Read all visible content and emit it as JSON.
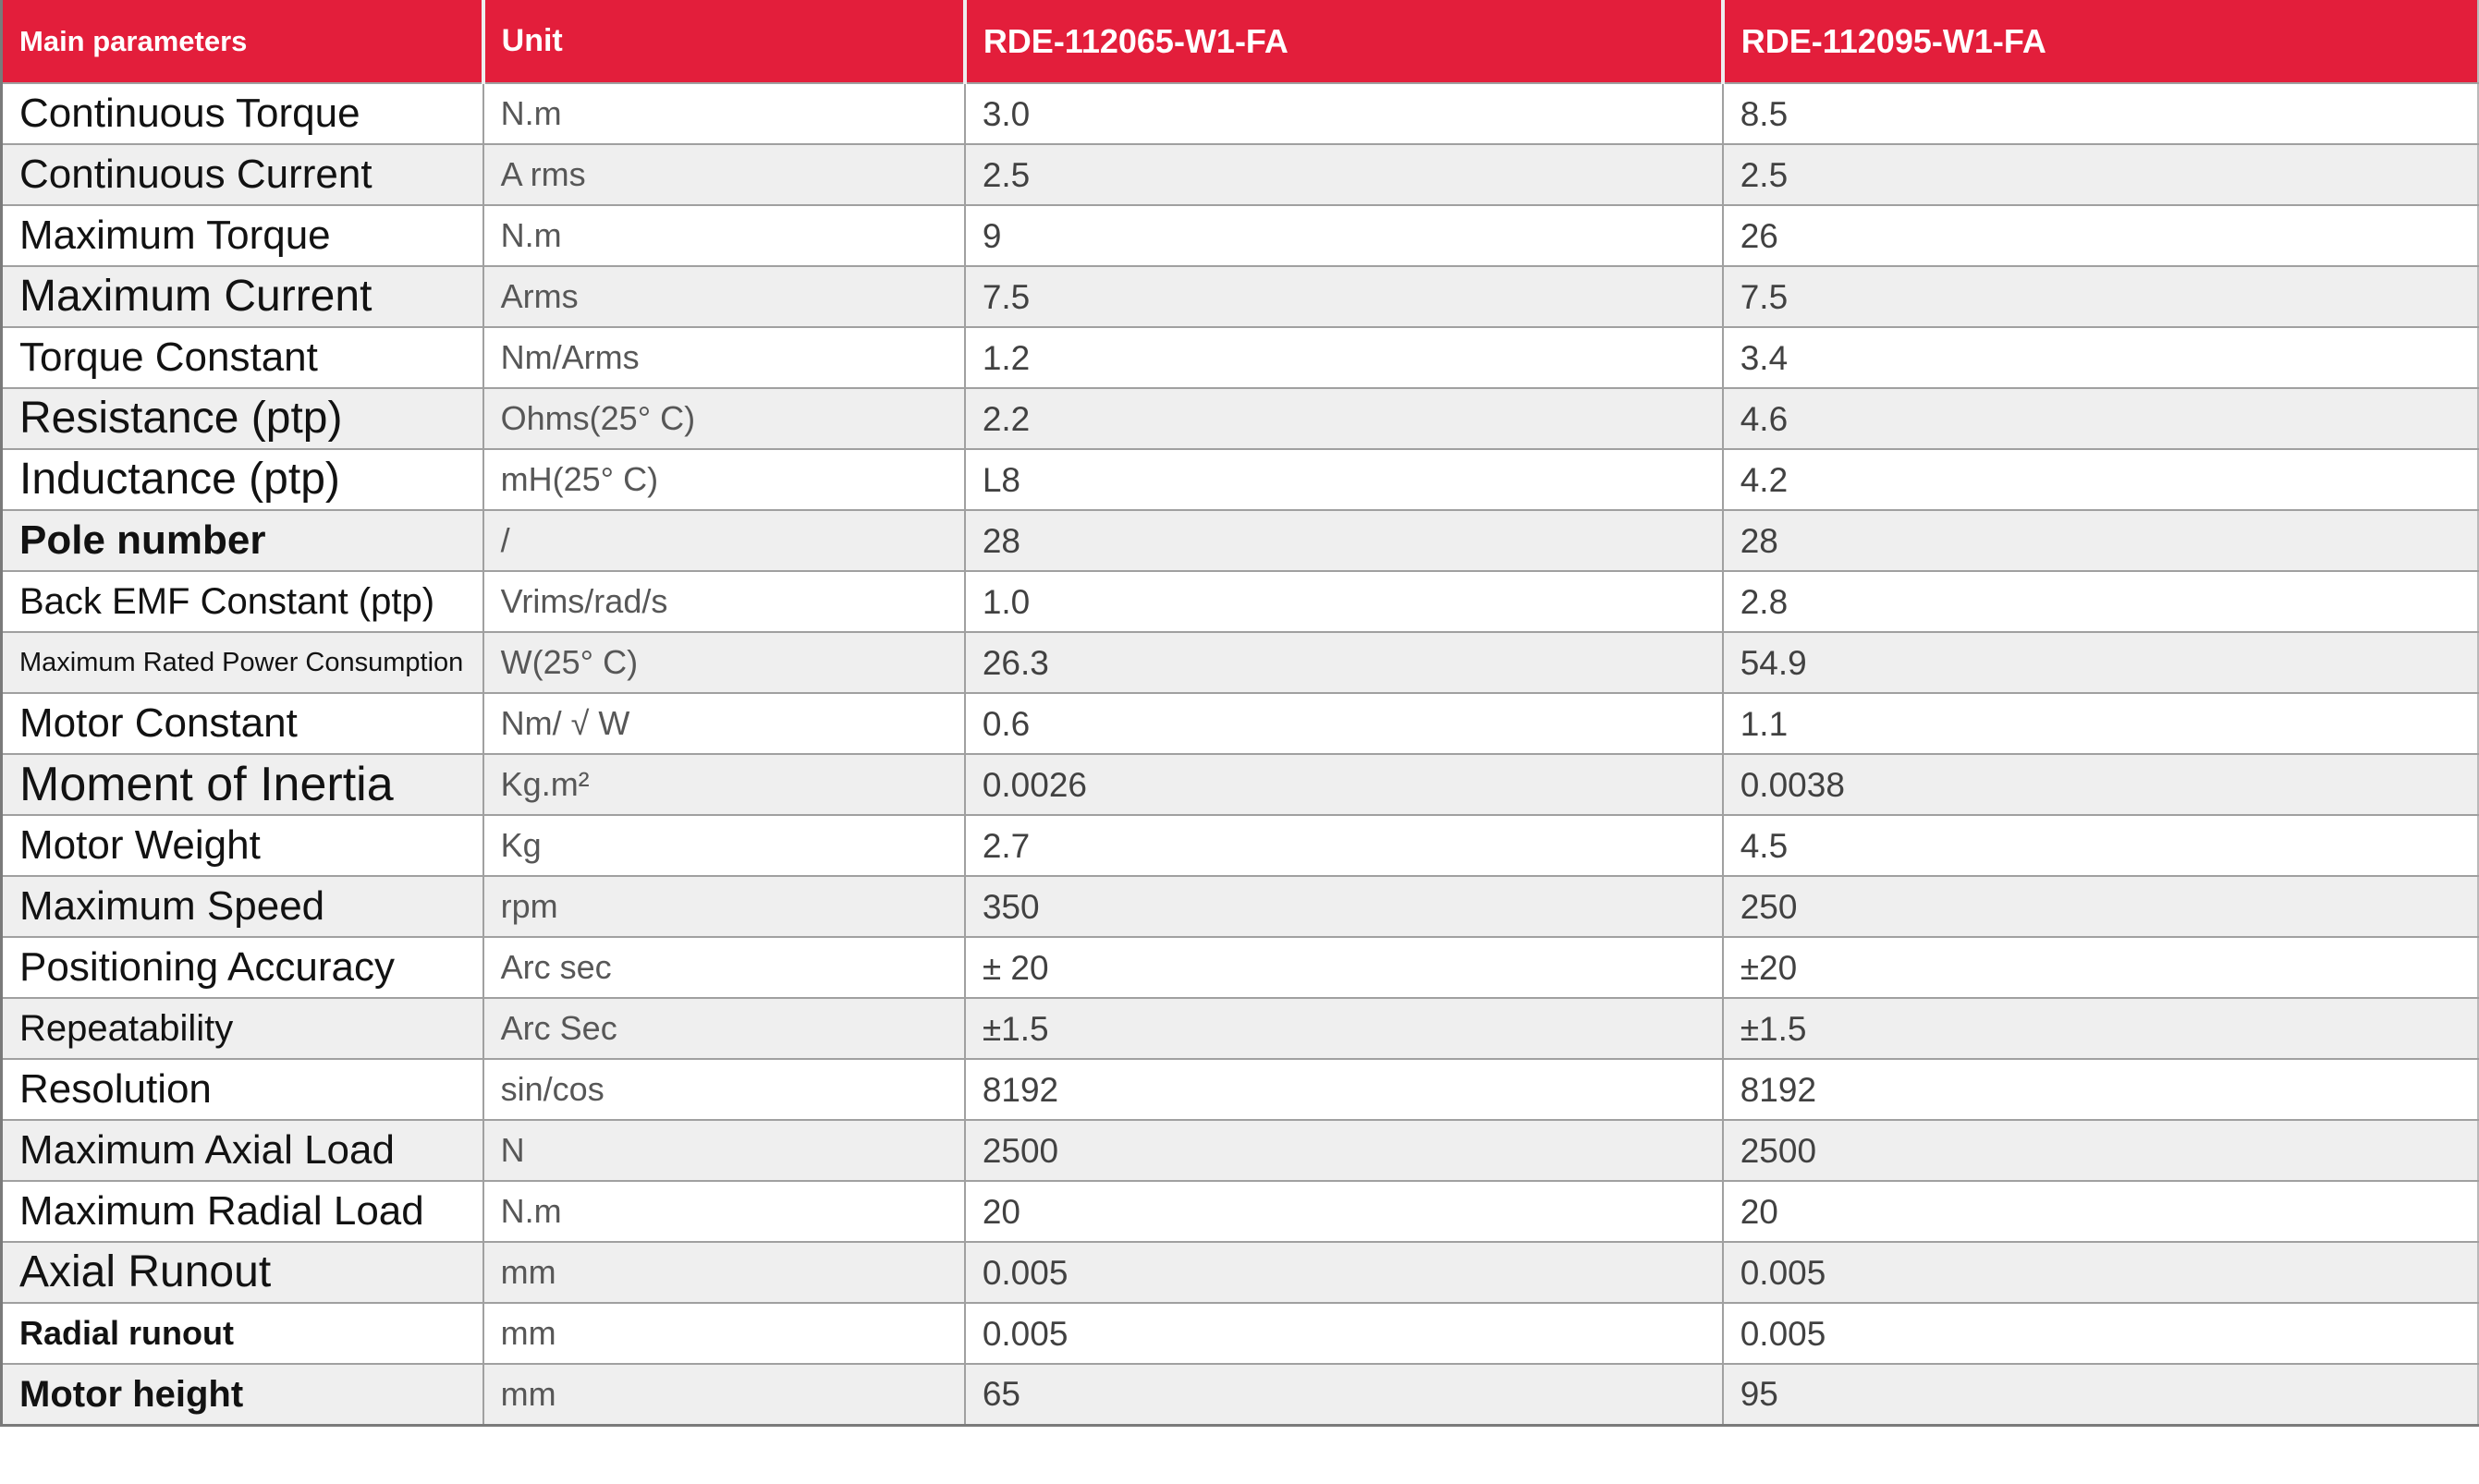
{
  "page": {
    "background": "#ffffff"
  },
  "colors": {
    "header_bg": "#e31e3b",
    "header_text": "#ffffff",
    "alt_row_bg": "#efefef",
    "border": "#a0a0a0",
    "label_color": "#121212",
    "unit_color": "#575757",
    "value_color": "#414141"
  },
  "table": {
    "columns": [
      {
        "label": "Main parameters"
      },
      {
        "label": "Unit"
      },
      {
        "label": "RDE-112065-W1-FA"
      },
      {
        "label": "RDE-112095-W1-FA"
      }
    ],
    "rows": [
      {
        "parameter": "Continuous Torque",
        "unit": "N.m",
        "v1": "3.0",
        "v2": "8.5"
      },
      {
        "parameter": "Continuous Current",
        "unit": "A rms",
        "v1": "2.5",
        "v2": "2.5"
      },
      {
        "parameter": "Maximum Torque",
        "unit": "N.m",
        "v1": "9",
        "v2": "26"
      },
      {
        "parameter": "Maximum Current",
        "unit": "Arms",
        "v1": "7.5",
        "v2": "7.5"
      },
      {
        "parameter": "Torque Constant",
        "unit": "Nm/Arms",
        "v1": "1.2",
        "v2": "3.4"
      },
      {
        "parameter": "Resistance (ptp)",
        "unit": "Ohms(25° C)",
        "v1": "2.2",
        "v2": "4.6"
      },
      {
        "parameter": "Inductance (ptp)",
        "unit": "mH(25° C)",
        "v1": "L8",
        "v2": "4.2"
      },
      {
        "parameter": "Pole number",
        "unit": "/",
        "v1": "28",
        "v2": "28"
      },
      {
        "parameter": "Back EMF Constant (ptp)",
        "unit": "Vrims/rad/s",
        "v1": "1.0",
        "v2": "2.8"
      },
      {
        "parameter": "Maximum Rated Power Consumption",
        "unit": "W(25° C)",
        "v1": "26.3",
        "v2": "54.9"
      },
      {
        "parameter": "Motor Constant",
        "unit": "Nm/ √ W",
        "v1": "0.6",
        "v2": "1.1"
      },
      {
        "parameter": "Moment of Inertia",
        "unit": "Kg.m²",
        "v1": "0.0026",
        "v2": "0.0038"
      },
      {
        "parameter": "Motor Weight",
        "unit": "Kg",
        "v1": "2.7",
        "v2": "4.5"
      },
      {
        "parameter": "Maximum Speed",
        "unit": "rpm",
        "v1": "350",
        "v2": "250"
      },
      {
        "parameter": "Positioning Accuracy",
        "unit": "Arc sec",
        "v1": "± 20",
        "v2": "±20"
      },
      {
        "parameter": "Repeatability",
        "unit": "Arc Sec",
        "v1": "±1.5",
        "v2": "±1.5"
      },
      {
        "parameter": "Resolution",
        "unit": "sin/cos",
        "v1": "8192",
        "v2": "8192"
      },
      {
        "parameter": "Maximum Axial Load",
        "unit": "N",
        "v1": "2500",
        "v2": "2500"
      },
      {
        "parameter": "Maximum Radial Load",
        "unit": "N.m",
        "v1": "20",
        "v2": "20"
      },
      {
        "parameter": "Axial Runout",
        "unit": "mm",
        "v1": "0.005",
        "v2": "0.005"
      },
      {
        "parameter": "Radial runout",
        "unit": "mm",
        "v1": "0.005",
        "v2": "0.005"
      },
      {
        "parameter": "Motor height",
        "unit": "mm",
        "v1": "65",
        "v2": "95"
      }
    ]
  }
}
